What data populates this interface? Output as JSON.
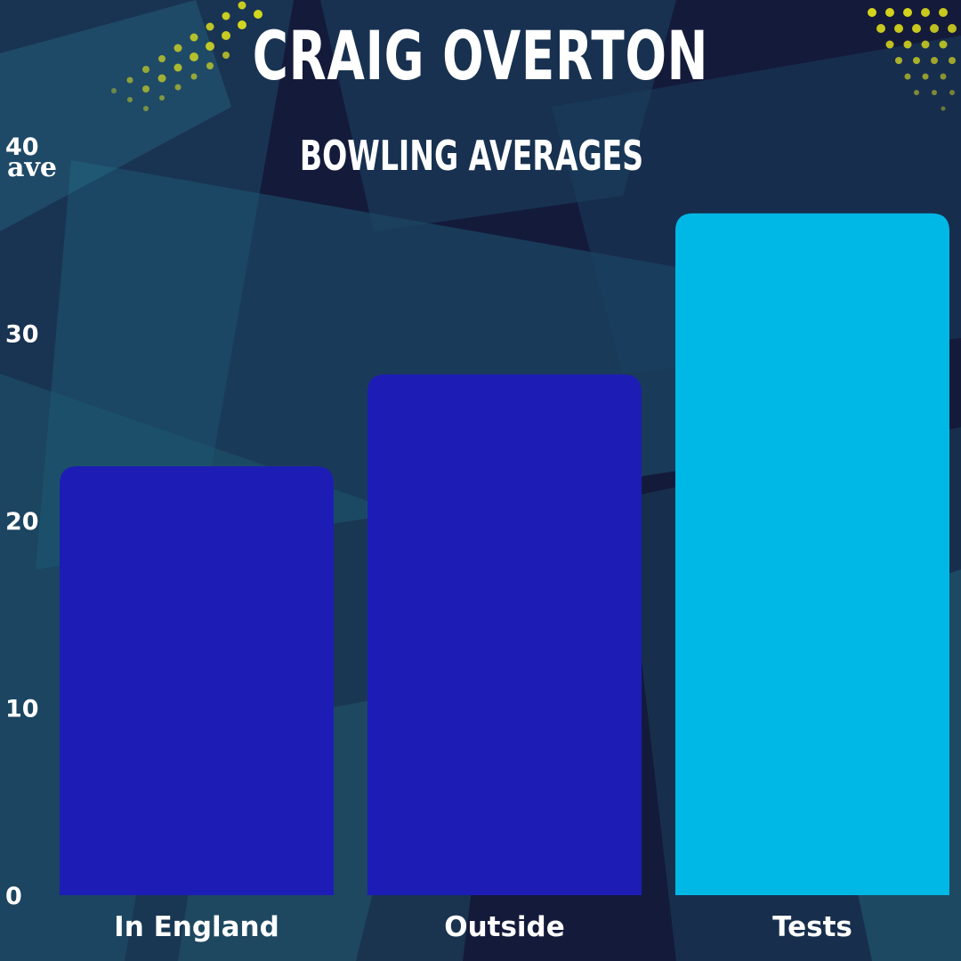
{
  "header": {
    "title": "CRAIG OVERTON",
    "subtitle": "BOWLING AVERAGES"
  },
  "chart_data": {
    "type": "bar",
    "title": "CRAIG OVERTON",
    "subtitle": "BOWLING AVERAGES",
    "xlabel": "",
    "ylabel": "ave",
    "categories": [
      "In England",
      "Outside",
      "Tests"
    ],
    "values": [
      22.9,
      27.8,
      36.4
    ],
    "ylim": [
      0,
      40
    ],
    "yticks": [
      0,
      10,
      20,
      30,
      40
    ],
    "grid": false,
    "legend": "none",
    "bar_colors": [
      "#1d1db5",
      "#1d1db5",
      "#00b8e6"
    ],
    "background_color": "#141a3a",
    "decoration_color": "#e8e81a"
  }
}
